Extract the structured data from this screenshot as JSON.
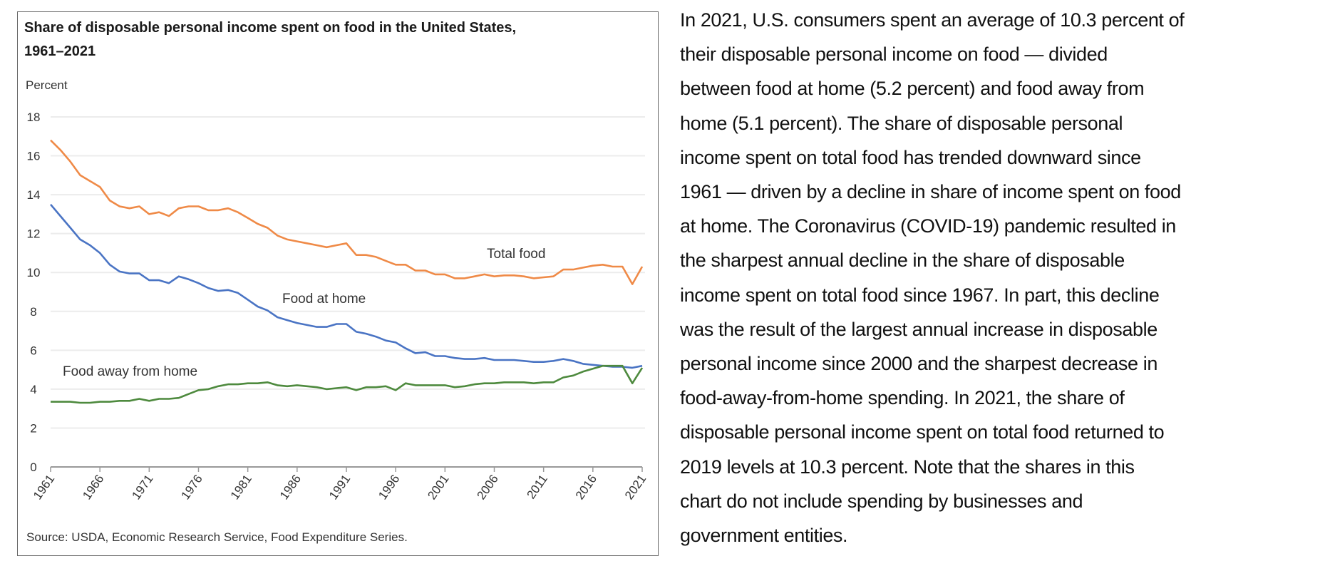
{
  "chart_data": {
    "type": "line",
    "title": "Share of disposable personal income spent on food in the United States,",
    "title_line2": "1961–2021",
    "ylabel": "Percent",
    "xlabel": "",
    "source": "Source: USDA, Economic Research Service, Food Expenditure Series.",
    "ylim": [
      0,
      18
    ],
    "yticks": [
      "0",
      "2",
      "4",
      "6",
      "8",
      "10",
      "12",
      "14",
      "16",
      "18"
    ],
    "xticks": [
      "1961",
      "1966",
      "1971",
      "1976",
      "1981",
      "1986",
      "1991",
      "1996",
      "2001",
      "2006",
      "2011",
      "2016",
      "2021"
    ],
    "grid": true,
    "x_start": 1961,
    "x_end": 2021,
    "series": [
      {
        "name": "Total food",
        "color": "#ef8a47",
        "values": [
          16.8,
          16.3,
          15.7,
          15.0,
          14.7,
          14.4,
          13.7,
          13.4,
          13.3,
          13.4,
          13.0,
          13.1,
          12.9,
          13.3,
          13.4,
          13.4,
          13.2,
          13.2,
          13.3,
          13.1,
          12.8,
          12.5,
          12.3,
          11.9,
          11.7,
          11.6,
          11.5,
          11.4,
          11.3,
          11.4,
          11.5,
          10.9,
          10.9,
          10.8,
          10.6,
          10.4,
          10.4,
          10.1,
          10.1,
          9.9,
          9.9,
          9.7,
          9.7,
          9.8,
          9.9,
          9.8,
          9.85,
          9.85,
          9.8,
          9.7,
          9.75,
          9.8,
          10.15,
          10.15,
          10.25,
          10.35,
          10.4,
          10.3,
          10.3,
          9.4,
          10.3
        ]
      },
      {
        "name": "Food at home",
        "color": "#4a74c4",
        "values": [
          13.5,
          12.9,
          12.3,
          11.7,
          11.4,
          11.0,
          10.4,
          10.05,
          9.95,
          9.95,
          9.6,
          9.6,
          9.45,
          9.8,
          9.65,
          9.45,
          9.2,
          9.05,
          9.1,
          8.95,
          8.6,
          8.25,
          8.05,
          7.7,
          7.55,
          7.4,
          7.3,
          7.2,
          7.2,
          7.35,
          7.35,
          6.95,
          6.85,
          6.7,
          6.5,
          6.4,
          6.1,
          5.85,
          5.9,
          5.7,
          5.7,
          5.6,
          5.55,
          5.55,
          5.6,
          5.5,
          5.5,
          5.5,
          5.45,
          5.4,
          5.4,
          5.45,
          5.55,
          5.45,
          5.3,
          5.25,
          5.2,
          5.15,
          5.15,
          5.1,
          5.2
        ]
      },
      {
        "name": "Food away from home",
        "color": "#4e8a3e",
        "values": [
          3.35,
          3.35,
          3.35,
          3.3,
          3.3,
          3.35,
          3.35,
          3.4,
          3.4,
          3.5,
          3.4,
          3.5,
          3.5,
          3.55,
          3.75,
          3.95,
          4.0,
          4.15,
          4.25,
          4.25,
          4.3,
          4.3,
          4.35,
          4.2,
          4.15,
          4.2,
          4.15,
          4.1,
          4.0,
          4.05,
          4.1,
          3.95,
          4.1,
          4.1,
          4.15,
          3.95,
          4.3,
          4.2,
          4.2,
          4.2,
          4.2,
          4.1,
          4.15,
          4.25,
          4.3,
          4.3,
          4.35,
          4.35,
          4.35,
          4.3,
          4.35,
          4.35,
          4.6,
          4.7,
          4.9,
          5.05,
          5.2,
          5.2,
          5.2,
          4.3,
          5.1
        ]
      }
    ]
  },
  "description_lines": [
    "In 2021, U.S. consumers spent an average of 10.3 percent of",
    "their disposable personal income on food — divided",
    "between food at home (5.2 percent) and food away from",
    "home (5.1 percent). The share of disposable personal",
    "income spent on total food has trended downward since",
    "1961 — driven by a decline in share of income spent on food",
    "at home. The Coronavirus (COVID-19) pandemic resulted in",
    "the sharpest annual decline in the share of disposable",
    "income spent on total food since 1967. In part, this decline",
    "was the result of the largest annual increase in disposable",
    "personal income since 2000 and the sharpest decrease in",
    "food-away-from-home spending. In 2021, the share of",
    "disposable personal income spent on total food returned to",
    "2019 levels at 10.3 percent. Note that the shares in this",
    "chart do not include spending by businesses and",
    "government entities."
  ]
}
